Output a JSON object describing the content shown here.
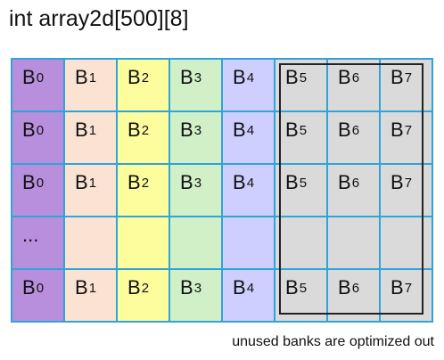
{
  "title": "int array2d[500][8]",
  "note": "unused banks are optimized out",
  "rows": [
    [
      "B|0",
      "B|1",
      "B|2",
      "B|3",
      "B|4",
      "B|5",
      "B|6",
      "B|7"
    ],
    [
      "B|0",
      "B|1",
      "B|2",
      "B|3",
      "B|4",
      "B|5",
      "B|6",
      "B|7"
    ],
    [
      "B|0",
      "B|1",
      "B|2",
      "B|3",
      "B|4",
      "B|5",
      "B|6",
      "B|7"
    ],
    [
      "...",
      "",
      "",
      "",
      "",
      "",
      "",
      ""
    ],
    [
      "B|0",
      "B|1",
      "B|2",
      "B|3",
      "B|4",
      "B|5",
      "B|6",
      "B|7"
    ]
  ],
  "colors": {
    "bank0": "#b78fdd",
    "bank1": "#fbe3d4",
    "bank2": "#fdfd9e",
    "bank3": "#d2f0c8",
    "bank4": "#cfcfff",
    "unused": "#dadada",
    "grid_line": "#2fa4d8"
  }
}
